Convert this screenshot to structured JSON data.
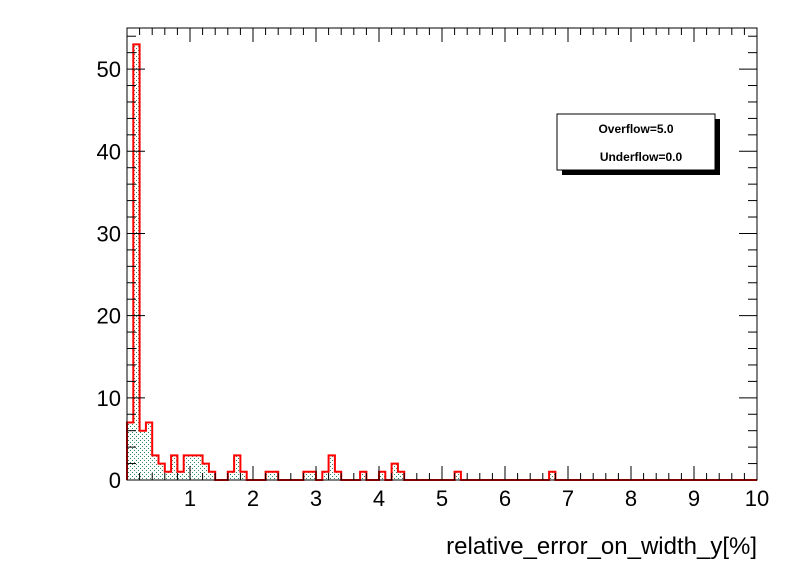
{
  "chart_data": {
    "type": "bar",
    "xlabel": "relative_error_on_width_y[%]",
    "ylabel": "",
    "title": "",
    "xlim": [
      0,
      10
    ],
    "ylim": [
      0,
      55
    ],
    "bin_width": 0.1,
    "x_ticks": [
      "1",
      "2",
      "3",
      "4",
      "5",
      "6",
      "7",
      "8",
      "9",
      "10"
    ],
    "y_ticks": [
      "0",
      "10",
      "20",
      "30",
      "40",
      "50"
    ],
    "x_tick_values": [
      1,
      2,
      3,
      4,
      5,
      6,
      7,
      8,
      9,
      10
    ],
    "y_tick_values": [
      0,
      10,
      20,
      30,
      40,
      50
    ],
    "series": [
      {
        "values": [
          7,
          53,
          6,
          7,
          3,
          2,
          1,
          3,
          1,
          3,
          3,
          3,
          2,
          1,
          0,
          0,
          1,
          3,
          1,
          0,
          0,
          0,
          1,
          1,
          0,
          0,
          0,
          0,
          1,
          1,
          0,
          1,
          3,
          1,
          0,
          0,
          0,
          1,
          0,
          0,
          1,
          0,
          2,
          1,
          0,
          0,
          0,
          0,
          0,
          0,
          0,
          0,
          1,
          0,
          0,
          0,
          0,
          0,
          0,
          0,
          0,
          0,
          0,
          0,
          0,
          0,
          0,
          1,
          0,
          0,
          0,
          0,
          0,
          0,
          0,
          0,
          0,
          0,
          0,
          0,
          0,
          0,
          0,
          0,
          0,
          0,
          0,
          0,
          0,
          0,
          0,
          0,
          0,
          0,
          0,
          0,
          0,
          0,
          0,
          0
        ]
      }
    ],
    "colors": {
      "line": "#ff0000",
      "fill": "#2e8b57",
      "frame": "#000000"
    },
    "grid": false
  },
  "stats_box": {
    "overflow": "Overflow=5.0",
    "underflow": "Underflow=0.0"
  }
}
